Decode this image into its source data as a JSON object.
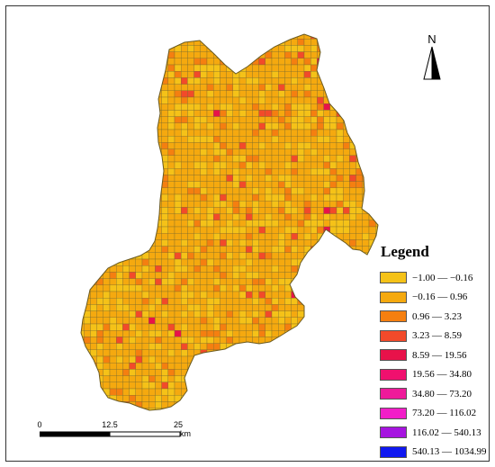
{
  "legend": {
    "title": "Legend",
    "classes": [
      {
        "label": "−1.00 — −0.16",
        "color": "#f5c218"
      },
      {
        "label": "−0.16 — 0.96",
        "color": "#f5a90f"
      },
      {
        "label": "0.96 — 3.23",
        "color": "#f57f10"
      },
      {
        "label": "3.23 — 8.59",
        "color": "#f24a2a"
      },
      {
        "label": "8.59 — 19.56",
        "color": "#e8124a"
      },
      {
        "label": "19.56 — 34.80",
        "color": "#f0106e"
      },
      {
        "label": "34.80 — 73.20",
        "color": "#ee1a9a"
      },
      {
        "label": "73.20 — 116.02",
        "color": "#f21ec8"
      },
      {
        "label": "116.02 — 540.13",
        "color": "#a614e0"
      },
      {
        "label": "540.13 — 1034.99",
        "color": "#1018f0"
      }
    ]
  },
  "north_arrow": {
    "label": "N"
  },
  "scale_bar": {
    "ticks": [
      "0",
      "12.5",
      "25"
    ],
    "unit": "km"
  },
  "map": {
    "grid_cell_outline": "#7a6a2a",
    "dominant_classes": [
      "#f5a90f",
      "#f5c218"
    ],
    "accent_classes": [
      "#f57f10",
      "#f24a2a",
      "#e8124a"
    ]
  }
}
